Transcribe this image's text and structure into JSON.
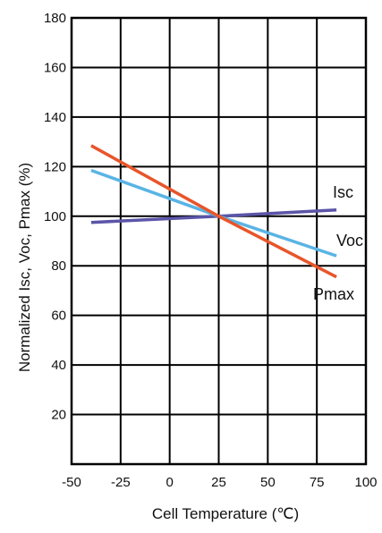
{
  "chart_data": {
    "type": "line",
    "title": "",
    "xlabel": "Cell Temperature (℃)",
    "ylabel": "Normalized Isc, Voc, Pmax (%)",
    "xlim": [
      -50,
      100
    ],
    "ylim": [
      0,
      180
    ],
    "xticks": [
      -50,
      -25,
      0,
      25,
      50,
      75,
      100
    ],
    "yticks": [
      20,
      40,
      60,
      80,
      100,
      120,
      140,
      160,
      180
    ],
    "xtick_labels": [
      "-50",
      "-25",
      "0",
      "25",
      "50",
      "75",
      "100"
    ],
    "ytick_labels": [
      "20",
      "40",
      "60",
      "80",
      "100",
      "120",
      "140",
      "160",
      "180"
    ],
    "grid": true,
    "legend": "none (series labelled inline at line ends)",
    "series": [
      {
        "name": "Isc",
        "color": "#5B55A8",
        "x": [
          -40,
          25,
          85
        ],
        "y": [
          97.5,
          100,
          102.5
        ]
      },
      {
        "name": "Voc",
        "color": "#5AB4E5",
        "x": [
          -40,
          25,
          85
        ],
        "y": [
          118.5,
          100,
          84
        ]
      },
      {
        "name": "Pmax",
        "color": "#E8552A",
        "x": [
          -40,
          25,
          85
        ],
        "y": [
          128.5,
          100,
          75.5
        ]
      }
    ]
  }
}
